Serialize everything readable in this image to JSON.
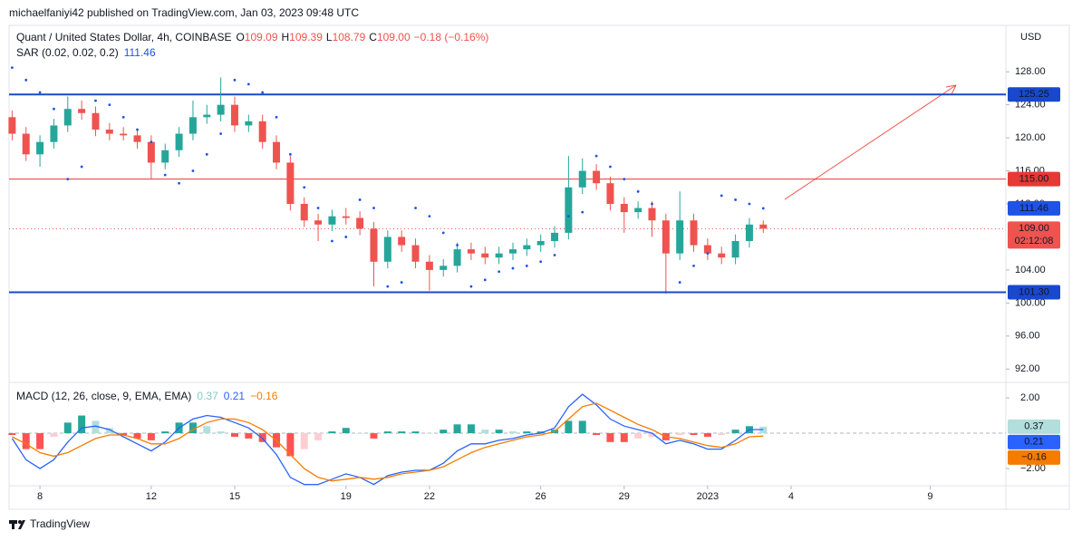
{
  "header": {
    "publisher": "michaelfaniyi42 published on TradingView.com, Jan 03, 2023 09:48 UTC"
  },
  "footer": {
    "brand": "TradingView"
  },
  "chart_data": [
    {
      "type": "candlestick",
      "title": "Quant / United States Dollar, 4h, COINBASE",
      "ohlc": [
        {
          "key": "O",
          "text": "109.09"
        },
        {
          "key": "H",
          "text": "109.39"
        },
        {
          "key": "L",
          "text": "108.79"
        },
        {
          "key": "C",
          "text": "109.00"
        }
      ],
      "change": "−0.18 (−0.16%)",
      "currency": "USD",
      "up_color": "#26a69a",
      "down_color": "#ef5350",
      "x": [
        7,
        7.5,
        8,
        8.5,
        9,
        9.5,
        10,
        10.5,
        11,
        11.5,
        12,
        12.5,
        13,
        13.5,
        14,
        14.5,
        15,
        15.5,
        16,
        16.5,
        17,
        17.5,
        18,
        18.5,
        19,
        19.5,
        20,
        20.5,
        21,
        21.5,
        22,
        22.5,
        23,
        23.5,
        24,
        24.5,
        25,
        25.5,
        26,
        26.5,
        27,
        27.5,
        28,
        28.5,
        29,
        29.5,
        30,
        30.5,
        31,
        31.5,
        32,
        32.5,
        33,
        33.5,
        34
      ],
      "open": [
        122.5,
        120.5,
        118,
        119.5,
        121.5,
        123.5,
        123,
        121,
        120.5,
        120.3,
        119.5,
        117,
        118.5,
        120.5,
        122.5,
        122.8,
        124,
        121.5,
        122,
        119.5,
        117,
        112,
        110,
        109.5,
        110.5,
        110.3,
        109,
        105,
        108,
        107,
        105,
        104,
        104.5,
        106.5,
        106,
        105.5,
        106,
        106.5,
        107,
        107.5,
        108.5,
        114,
        116,
        114.5,
        112,
        111,
        111.5,
        110,
        106,
        110,
        107,
        106,
        105.5,
        107.5,
        109.5
      ],
      "high": [
        123.3,
        121.3,
        120.3,
        122.3,
        125,
        124.5,
        123.8,
        121.8,
        121.3,
        121,
        120.3,
        119.3,
        121.3,
        124.5,
        124,
        127.3,
        125,
        122.8,
        122.8,
        120.3,
        117.8,
        112.8,
        110.8,
        111.3,
        111.5,
        111.1,
        109.8,
        108.8,
        108.8,
        107.8,
        105.8,
        105.3,
        107.3,
        107.3,
        106.8,
        106.8,
        107.3,
        107.8,
        108.3,
        109.3,
        117.8,
        117.5,
        116.8,
        115.3,
        112.8,
        112.3,
        112.3,
        110.8,
        113.5,
        110.8,
        107.8,
        106.8,
        108.3,
        110.3,
        110
      ],
      "low": [
        119.7,
        117.2,
        116.5,
        118.7,
        120.7,
        122.2,
        120.2,
        119.7,
        119.7,
        118.7,
        115,
        116.2,
        117.7,
        119.7,
        121.7,
        122,
        120.7,
        120.7,
        118.7,
        116.2,
        111.2,
        109.2,
        107.5,
        108.7,
        109.5,
        108.2,
        102,
        104.2,
        106.2,
        104.2,
        101.5,
        103.2,
        103.7,
        105.2,
        104.7,
        104.7,
        105.2,
        105.7,
        106.2,
        106.7,
        107.7,
        113.2,
        113.7,
        111.2,
        108.5,
        110.2,
        108,
        101.3,
        105.2,
        106.2,
        105.2,
        104.7,
        104.7,
        106.7,
        108.5
      ],
      "close": [
        120.5,
        118,
        119.5,
        121.5,
        123.5,
        123,
        121,
        120.5,
        120.3,
        119.5,
        117,
        118.5,
        120.5,
        122.5,
        122.8,
        124,
        121.5,
        122,
        119.5,
        117,
        112,
        110,
        109.5,
        110.5,
        110.3,
        109,
        105,
        108,
        107,
        105,
        104,
        104.5,
        106.5,
        106,
        105.5,
        106,
        106.5,
        107,
        107.5,
        108.5,
        114,
        116,
        114.5,
        112,
        111,
        111.5,
        110,
        106,
        110,
        107,
        106,
        105.5,
        107.5,
        109.5,
        109
      ],
      "ylim": [
        90.6,
        133.4
      ],
      "yticks": [
        {
          "value": 92,
          "label": "92.00"
        },
        {
          "value": 96,
          "label": "96.00"
        },
        {
          "value": 100,
          "label": "100.00"
        },
        {
          "value": 104,
          "label": "104.00"
        },
        {
          "value": 112,
          "label": "112.00"
        },
        {
          "value": 116,
          "label": "116.00"
        },
        {
          "value": 120,
          "label": "120.00"
        },
        {
          "value": 124,
          "label": "124.00"
        },
        {
          "value": 128,
          "label": "128.00"
        }
      ],
      "xlim": [
        6.89,
        42.72
      ],
      "xticks": [
        8,
        12,
        15,
        19,
        22,
        26,
        29,
        {
          "value": 32,
          "label": "2023"
        },
        {
          "value": 35,
          "label": "4"
        },
        {
          "value": 40,
          "label": "9"
        }
      ],
      "grid": false,
      "levels": [
        {
          "value": 125.25,
          "label": "125.25",
          "color": "#1848cc",
          "style": "solid"
        },
        {
          "value": 115,
          "label": "115.00",
          "color": "#e53935",
          "style": "thin"
        },
        {
          "value": 101.3,
          "label": "101.30",
          "color": "#1848cc",
          "style": "solid"
        },
        {
          "value": 109,
          "label": "109.00",
          "color": "#ef5350",
          "style": "dotted",
          "countdown": "02:12:08"
        }
      ],
      "sar": {
        "name": "SAR (0.02, 0.02, 0.2)",
        "value": 111.46,
        "value_label": "111.46",
        "color": "#1e53e5",
        "values": [
          128.5,
          127,
          125.5,
          123.5,
          115,
          116.5,
          124.5,
          124,
          122.5,
          121,
          119.5,
          115.5,
          114.5,
          116,
          118,
          120.5,
          127,
          126.5,
          125.5,
          122.5,
          118,
          114,
          111.5,
          107.5,
          108,
          112.5,
          111.5,
          102,
          102.5,
          111.5,
          110.5,
          108.5,
          107,
          102,
          102.8,
          103.8,
          104.2,
          104.5,
          105,
          105.8,
          110.5,
          111,
          117.8,
          116.5,
          115,
          113.5,
          112,
          101.3,
          102.5,
          104.5,
          106,
          113,
          112.5,
          112,
          111.46
        ]
      }
    },
    {
      "type": "macd",
      "name": "MACD (12, 26, close, 9, EMA, EMA)",
      "ylim": [
        -2.92,
        2.72
      ],
      "yticks": [
        {
          "value": 2,
          "label": "2.00"
        },
        {
          "value": -2,
          "label": "−2.00"
        }
      ],
      "histogram": {
        "last_label": "0.37",
        "colors": [
          "#26a69a",
          "#b2dfdb",
          "#ff5252",
          "#ffcdd2"
        ],
        "label_color": "#80cbc4",
        "values": [
          -0.1,
          -0.9,
          -0.9,
          -0.2,
          0.6,
          1.0,
          0.7,
          0.3,
          -0.1,
          -0.3,
          -0.4,
          0.1,
          0.6,
          0.6,
          0.4,
          0.1,
          -0.2,
          -0.3,
          -0.5,
          -0.8,
          -1.3,
          -0.9,
          -0.4,
          0.1,
          0.3,
          0.0,
          -0.3,
          0.1,
          0.1,
          0.1,
          0.0,
          0.2,
          0.5,
          0.5,
          0.2,
          0.2,
          0.1,
          0.1,
          0.1,
          0.2,
          0.7,
          0.7,
          -0.1,
          -0.5,
          -0.5,
          -0.3,
          -0.2,
          -0.4,
          -0.1,
          -0.1,
          -0.2,
          -0.1,
          0.2,
          0.4,
          0.37
        ]
      },
      "macd": {
        "last_label": "0.21",
        "color": "#2962ff",
        "values": [
          -0.3,
          -1.5,
          -2.0,
          -1.5,
          -0.5,
          0.3,
          0.4,
          0.2,
          -0.2,
          -0.6,
          -1.0,
          -0.5,
          0.3,
          0.8,
          1.0,
          0.9,
          0.6,
          0.3,
          -0.3,
          -1.2,
          -2.5,
          -2.9,
          -2.9,
          -2.6,
          -2.3,
          -2.5,
          -2.9,
          -2.4,
          -2.2,
          -2.1,
          -2.1,
          -1.7,
          -1.0,
          -0.6,
          -0.6,
          -0.4,
          -0.3,
          -0.1,
          0.0,
          0.3,
          1.5,
          2.2,
          1.6,
          0.8,
          0.4,
          0.2,
          0.0,
          -0.6,
          -0.4,
          -0.6,
          -0.9,
          -0.9,
          -0.4,
          0.2,
          0.21
        ]
      },
      "signal": {
        "last_label": "−0.16",
        "color": "#f57c00",
        "values": [
          -0.2,
          -0.6,
          -1.1,
          -1.3,
          -1.1,
          -0.7,
          -0.3,
          -0.1,
          -0.1,
          -0.3,
          -0.6,
          -0.6,
          -0.3,
          0.2,
          0.6,
          0.8,
          0.8,
          0.6,
          0.2,
          -0.4,
          -1.2,
          -2.0,
          -2.5,
          -2.7,
          -2.6,
          -2.5,
          -2.6,
          -2.5,
          -2.3,
          -2.2,
          -2.1,
          -1.9,
          -1.5,
          -1.1,
          -0.8,
          -0.6,
          -0.4,
          -0.2,
          -0.1,
          0.1,
          0.8,
          1.5,
          1.7,
          1.3,
          0.9,
          0.5,
          0.2,
          -0.2,
          -0.3,
          -0.5,
          -0.7,
          -0.8,
          -0.6,
          -0.2,
          -0.16
        ]
      }
    }
  ]
}
